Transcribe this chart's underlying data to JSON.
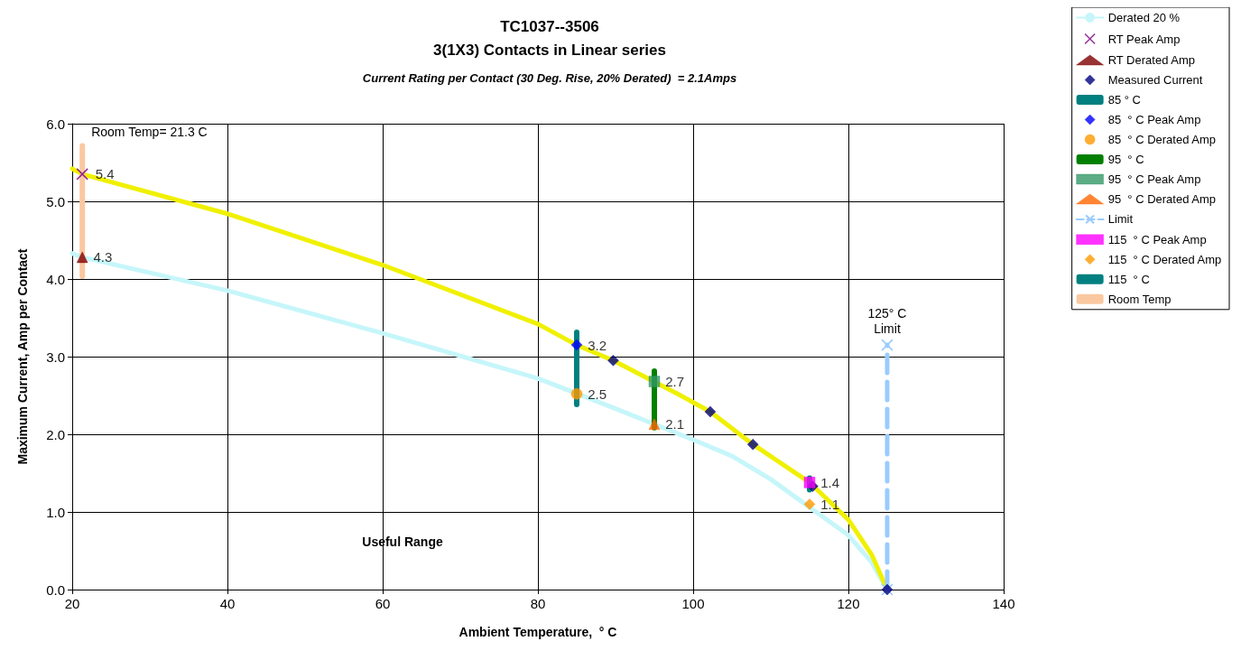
{
  "chart_data": {
    "type": "scatter",
    "title": "TC1037--3506\n3(1X3) Contacts in Linear series",
    "subtitle": "Current Rating per Contact (30 Deg. Rise, 20% Derated)  = 2.1Amps",
    "xlabel": "Ambient Temperature,  ° C",
    "ylabel": "Maximum Current, Amp per Contact",
    "xlim": [
      20,
      140
    ],
    "xticks": [
      20,
      40,
      60,
      80,
      100,
      120,
      140
    ],
    "ylim": [
      0,
      6
    ],
    "yticks": [
      {
        "value": 0,
        "label": "0.0"
      },
      {
        "value": 1,
        "label": "1.0"
      },
      {
        "value": 2,
        "label": "2.0"
      },
      {
        "value": 3,
        "label": "3.0"
      },
      {
        "value": 4,
        "label": "4.0"
      },
      {
        "value": 5,
        "label": "5.0"
      },
      {
        "value": 6,
        "label": "6.0"
      }
    ],
    "grid": true,
    "legend": "top right",
    "annotations": [
      {
        "text": "Room Temp= 21.3 C",
        "x": 21.3,
        "y": 5.75
      },
      {
        "text": "125° C\nLimit",
        "x": 125,
        "y": 3.15
      },
      "Useful Range"
    ],
    "series": [
      {
        "name": "Derated 20 %",
        "type": "line",
        "color": "#c6f6fa",
        "marker": "none",
        "x": [
          20,
          21.3,
          40,
          60,
          80,
          90,
          100,
          105,
          110,
          120,
          123,
          125
        ],
        "values": [
          4.33,
          4.28,
          3.85,
          3.3,
          2.72,
          2.33,
          1.93,
          1.72,
          1.42,
          0.7,
          0.35,
          0
        ]
      },
      {
        "type": "line",
        "color": "#f0f000",
        "marker": "none",
        "x": [
          20,
          21.3,
          40,
          60,
          80,
          85,
          89.7,
          98,
          102.2,
          107.7,
          115,
          120,
          123,
          125
        ],
        "values": [
          5.42,
          5.35,
          4.84,
          4.18,
          3.42,
          3.15,
          2.95,
          2.52,
          2.29,
          1.87,
          1.38,
          0.9,
          0.45,
          0
        ]
      },
      {
        "name": "RT Peak Amp",
        "color": "#800080",
        "marker": "cross",
        "x": [
          21.3
        ],
        "values": [
          5.35
        ],
        "value_labels": [
          "5.4"
        ]
      },
      {
        "name": "RT Derated Amp",
        "color": "#800000",
        "marker": "triangle",
        "x": [
          21.3
        ],
        "values": [
          4.28
        ],
        "value_labels": [
          "4.3"
        ]
      },
      {
        "name": "Measured Current",
        "color": "#000080",
        "marker": "diamond",
        "x": [
          89.7,
          102.2,
          107.7,
          115.4,
          125
        ],
        "values": [
          2.95,
          2.29,
          1.87,
          1.33,
          0
        ]
      },
      {
        "name": "85 ° C",
        "type": "bar",
        "color": "#008080",
        "x": [
          85
        ],
        "base": [
          2.35
        ],
        "values": [
          1.0
        ]
      },
      {
        "name": "85  ° C Peak Amp",
        "color": "#0000ff",
        "marker": "diamond",
        "x": [
          85
        ],
        "values": [
          3.15
        ],
        "value_labels": [
          "3.2"
        ]
      },
      {
        "name": "85  ° C Derated Amp",
        "color": "#ff9900",
        "marker": "circle",
        "x": [
          85
        ],
        "values": [
          2.52
        ],
        "value_labels": [
          "2.5"
        ]
      },
      {
        "name": "95  ° C",
        "type": "bar",
        "color": "#008000",
        "x": [
          95
        ],
        "base": [
          2.05
        ],
        "values": [
          0.8
        ]
      },
      {
        "name": "95  ° C Peak Amp",
        "color": "#339966",
        "marker": "square",
        "x": [
          95
        ],
        "values": [
          2.68
        ],
        "value_labels": [
          "2.7"
        ]
      },
      {
        "name": "95  ° C Derated Amp",
        "color": "#ff6600",
        "marker": "triangle",
        "x": [
          95
        ],
        "values": [
          2.13
        ],
        "value_labels": [
          "2.1"
        ]
      },
      {
        "name": "Limit",
        "type": "line",
        "color": "#99ccff",
        "marker": "cross",
        "line_style": "dashed",
        "x": [
          125,
          125
        ],
        "values": [
          0,
          3.15
        ]
      },
      {
        "name": "115  ° C Peak Amp",
        "color": "#ff00ff",
        "marker": "square",
        "x": [
          115
        ],
        "values": [
          1.38
        ],
        "value_labels": [
          "1.4"
        ]
      },
      {
        "name": "115  ° C Derated Amp",
        "color": "#ff9900",
        "marker": "diamond",
        "x": [
          115
        ],
        "values": [
          1.1
        ],
        "value_labels": [
          "1.1"
        ]
      },
      {
        "name": "115  ° C",
        "type": "bar",
        "color": "#008080",
        "x": [
          115
        ],
        "base": [
          1.25
        ],
        "values": [
          0.22
        ]
      },
      {
        "name": "Room Temp",
        "type": "bar",
        "color": "#fac8a0",
        "x": [
          21.3
        ],
        "base": [
          4.0
        ],
        "values": [
          1.75
        ]
      }
    ]
  }
}
